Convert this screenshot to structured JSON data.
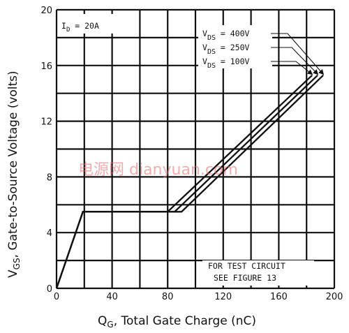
{
  "chart_data": {
    "type": "line",
    "xlabel": "Q_G, Total Gate Charge (nC)",
    "xlabel_parts": {
      "main": "Q",
      "sub": "G",
      "rest": ", Total Gate Charge (nC)"
    },
    "ylabel": "V_GS, Gate-to-Source Voltage (volts)",
    "ylabel_parts": {
      "main": "V",
      "sub": "GS",
      "rest": ", Gate-to-Source Voltage (volts)"
    },
    "xlim": [
      0,
      200
    ],
    "ylim": [
      0,
      20
    ],
    "xticks": [
      0,
      40,
      80,
      120,
      160,
      200
    ],
    "yticks": [
      0,
      4,
      8,
      12,
      16,
      20
    ],
    "grid": true,
    "condition": {
      "main": "I",
      "sub": "D",
      "rest": " = 20A"
    },
    "series": [
      {
        "name": "V_DS = 400V",
        "label_main": "V",
        "label_sub": "DS",
        "label_rest": " = 400V",
        "points": [
          [
            0,
            0
          ],
          [
            19,
            5.5
          ],
          [
            90,
            5.5
          ],
          [
            192,
            15.3
          ]
        ]
      },
      {
        "name": "V_DS = 250V",
        "label_main": "V",
        "label_sub": "DS",
        "label_rest": " = 250V",
        "points": [
          [
            0,
            0
          ],
          [
            19,
            5.5
          ],
          [
            85,
            5.5
          ],
          [
            188,
            15.3
          ]
        ]
      },
      {
        "name": "V_DS = 100V",
        "label_main": "V",
        "label_sub": "DS",
        "label_rest": " = 100V",
        "points": [
          [
            0,
            0
          ],
          [
            19,
            5.5
          ],
          [
            80,
            5.5
          ],
          [
            184,
            15.3
          ]
        ]
      }
    ],
    "annotations": [
      "FOR TEST CIRCUIT",
      "SEE FIGURE 13"
    ],
    "watermark": "电源网 dianyuan.com"
  }
}
